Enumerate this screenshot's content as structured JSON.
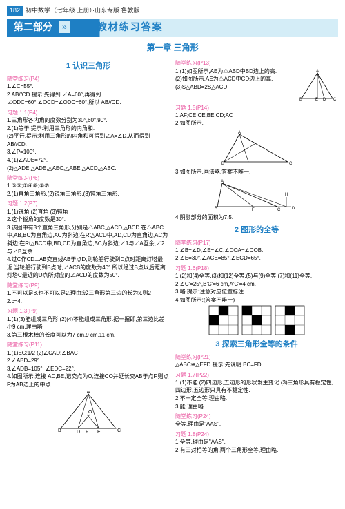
{
  "header": {
    "page": "182",
    "text": "初中数学（七年级 上册）·山东专版 鲁教版"
  },
  "banner": {
    "part": "第二部分",
    "title": "教材练习答案"
  },
  "chapter": "第一章 三角形",
  "colors": {
    "brand": "#1e7fc4",
    "accent": "#e9539e",
    "lightblue": "#d4edf7",
    "text": "#000"
  },
  "left": {
    "sec1": {
      "title": "1 认识三角形"
    },
    "p4": {
      "l": "随堂练习(P4)",
      "b": "1.∠C=55°.\n2.AB//CD.提示:先得到 ∠A=60°,再得到∠ODC=60°,∠OCD=∠ODC=60°,所以 AB//CD."
    },
    "x11": {
      "l": "习题 1.1(P4)",
      "b": "1.三角形各内角的度数分别为30°,60°,90°.\n2.(1)等于.提示:利用三角形的内角和.\n(2)平行.提示:利用三角形的内角和可得到∠A=∠D,从而得到 AB//CD.\n3.∠P=100°.\n4.(1)∠ADE=72°.\n(2)△ADE,△ADE,△AEC,△ABE,△ACD,△ABC."
    },
    "p6": {
      "l": "随堂练习(P6)",
      "b": "1.③⑤;①④⑥;②⑦.\n2.(1)直角三角形.(2)锐角三角形.(3)钝角三角形."
    },
    "x12": {
      "l": "习题 1.2(P7)",
      "b": "1.(1)锐角 (2)直角 (3)钝角\n2.这个锐角的度数是30°.\n3.该图中有3个直角三角形,分别是△ABC,△ACD,△BCD.在△ABC中,AB,BC为直角边,AC为斜边;在Rt△ACD中,AD,CD为直角边,AC为斜边;在Rt△BCD中,BD,CD为直角边,BC为斜边;∠1与∠A互余,∠2与∠B互余.\n4.过C作CD⊥AB交直线AB于点D,则轮船行驶到D点时距离灯塔最近.当轮船行驶到B点时,∠ACB的度数为40°.所以经过B点以后距离灯塔C最近的D点所对应的∠ACD的度数为50°."
    },
    "p9": {
      "l": "随堂练习(P9)",
      "b": "1.不可以是8,也不可以是2.理由:设三角形第三边的长为x,则2<x<8,所以第三边的长不可以是8,也不可以是2.\n2.c=4."
    },
    "x13": {
      "l": "习题 1.3(P9)",
      "b": "1.(1)(3)能组成三角形;(2)(4)不能组成三角形.据一握即,第三边比差小9 cm.理由略.\n3.第三根木棒的长度可以为7 cm,9 cm,11 cm."
    },
    "p11": {
      "l": "随堂练习(P11)",
      "b": "1.(1)EC;1/2 (2)∠CAD;∠BAC\n2.∠ABD=29°.\n3.∠ADB=105°. ∠EDC=22°.\n4.如图所示,连接 AD,BE,记交点为O,连接CO并延长交AB于点F,则点F为AB边上的中点."
    },
    "sec2": {
      "title": "2 图形的全等"
    },
    "sec3": {
      "title": "3 探索三角形全等的条件"
    }
  },
  "right": {
    "p13": {
      "l": "随堂练习(P13)",
      "b": "1.(1)如图所示,AE为△ABD中BD边上的高.\n(2)如图所示,AE为△ACD中CD边上的高.\n(3)S△ABD=2S△ACD."
    },
    "x15": {
      "l": "习题 1.5(P14)",
      "b": "1.AF;CE;CE;BE;CD;AC\n2.如图所示.",
      "b2": "3.如图所示.画法略.答案不唯一.",
      "b3": "4.阴影部分的面积为7.5."
    },
    "p17": {
      "l": "随堂练习(P17)",
      "b": "1.∠B=∠D,∠E=∠C,∠DOA=∠COB.\n2.∠E=30°,∠ACE=85°,∠ECD=65°."
    },
    "x16": {
      "l": "习题 1.6(P18)",
      "b": "1.(2)和(4)全等,(3)和(12)全等,(5)与(9)全等,(7)和(11)全等.\n2.∠C'=25°,B'C'=6 cm,A'C'=4 cm.\n3.略.提示:注意对应位置标注.\n4.如图所示:(答案不唯一)"
    },
    "p21": {
      "l": "随堂练习(P21)",
      "b": "△ABC≌△EFD.提示:先说明 BC=FD."
    },
    "x17": {
      "l": "习题 1.7(P22)",
      "b": "1.(1)不能.(2)四边形,五边形的形状发生变化.(3)三角形具有稳定性,四边形,五边形只具有不稳定性.\n2.不一定全等.理由略.\n3.能.理由略."
    },
    "p24": {
      "l": "随堂练习(P24)",
      "b": "全等,理由是\"AAS\"."
    },
    "x18": {
      "l": "习题 1.8(P24)",
      "b": "1.全等,理由是\"AAS\".\n2.有三对相等的角,两个三角形全等,理由略."
    }
  }
}
